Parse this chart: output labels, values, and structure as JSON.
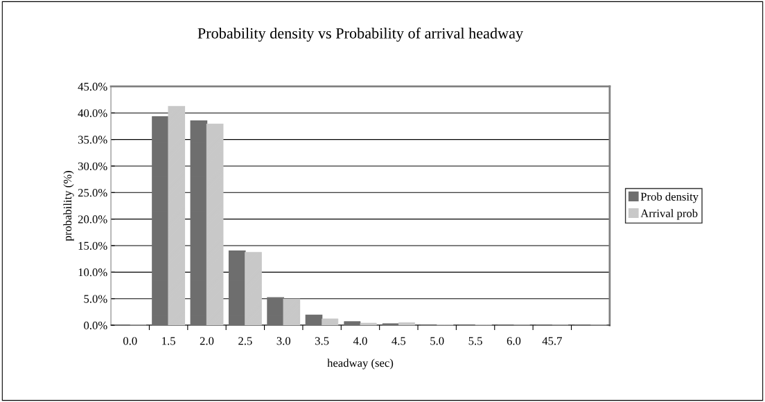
{
  "chart_data": {
    "type": "bar",
    "title": "Probability density vs Probability of arrival headway",
    "xlabel": "headway (sec)",
    "ylabel": "probability (%)",
    "categories": [
      "0.0",
      "1.5",
      "2.0",
      "2.5",
      "3.0",
      "3.5",
      "4.0",
      "4.5",
      "5.0",
      "5.5",
      "6.0",
      "45.7",
      null
    ],
    "series": [
      {
        "name": "Prob density",
        "color": "#6e6e6e",
        "values": [
          0,
          39.3,
          38.5,
          14.0,
          5.2,
          1.9,
          0.7,
          0.3,
          0.1,
          0.1,
          0,
          0,
          0
        ]
      },
      {
        "name": "Arrival prob",
        "color": "#c8c8c8",
        "values": [
          0,
          41.2,
          37.9,
          13.7,
          4.9,
          1.2,
          0.4,
          0.5,
          0.1,
          0.1,
          0,
          0,
          0
        ]
      }
    ],
    "ylim": [
      0,
      45
    ],
    "yticks": [
      {
        "value": 0,
        "label": "0.0%"
      },
      {
        "value": 5,
        "label": "5.0%"
      },
      {
        "value": 10,
        "label": "10.0%"
      },
      {
        "value": 15,
        "label": "15.0%"
      },
      {
        "value": 20,
        "label": "20.0%"
      },
      {
        "value": 25,
        "label": "25.0%"
      },
      {
        "value": 30,
        "label": "30.0%"
      },
      {
        "value": 35,
        "label": "35.0%"
      },
      {
        "value": 40,
        "label": "40.0%"
      },
      {
        "value": 45,
        "label": "45.0%"
      }
    ],
    "grid": "y",
    "legend": "right"
  }
}
